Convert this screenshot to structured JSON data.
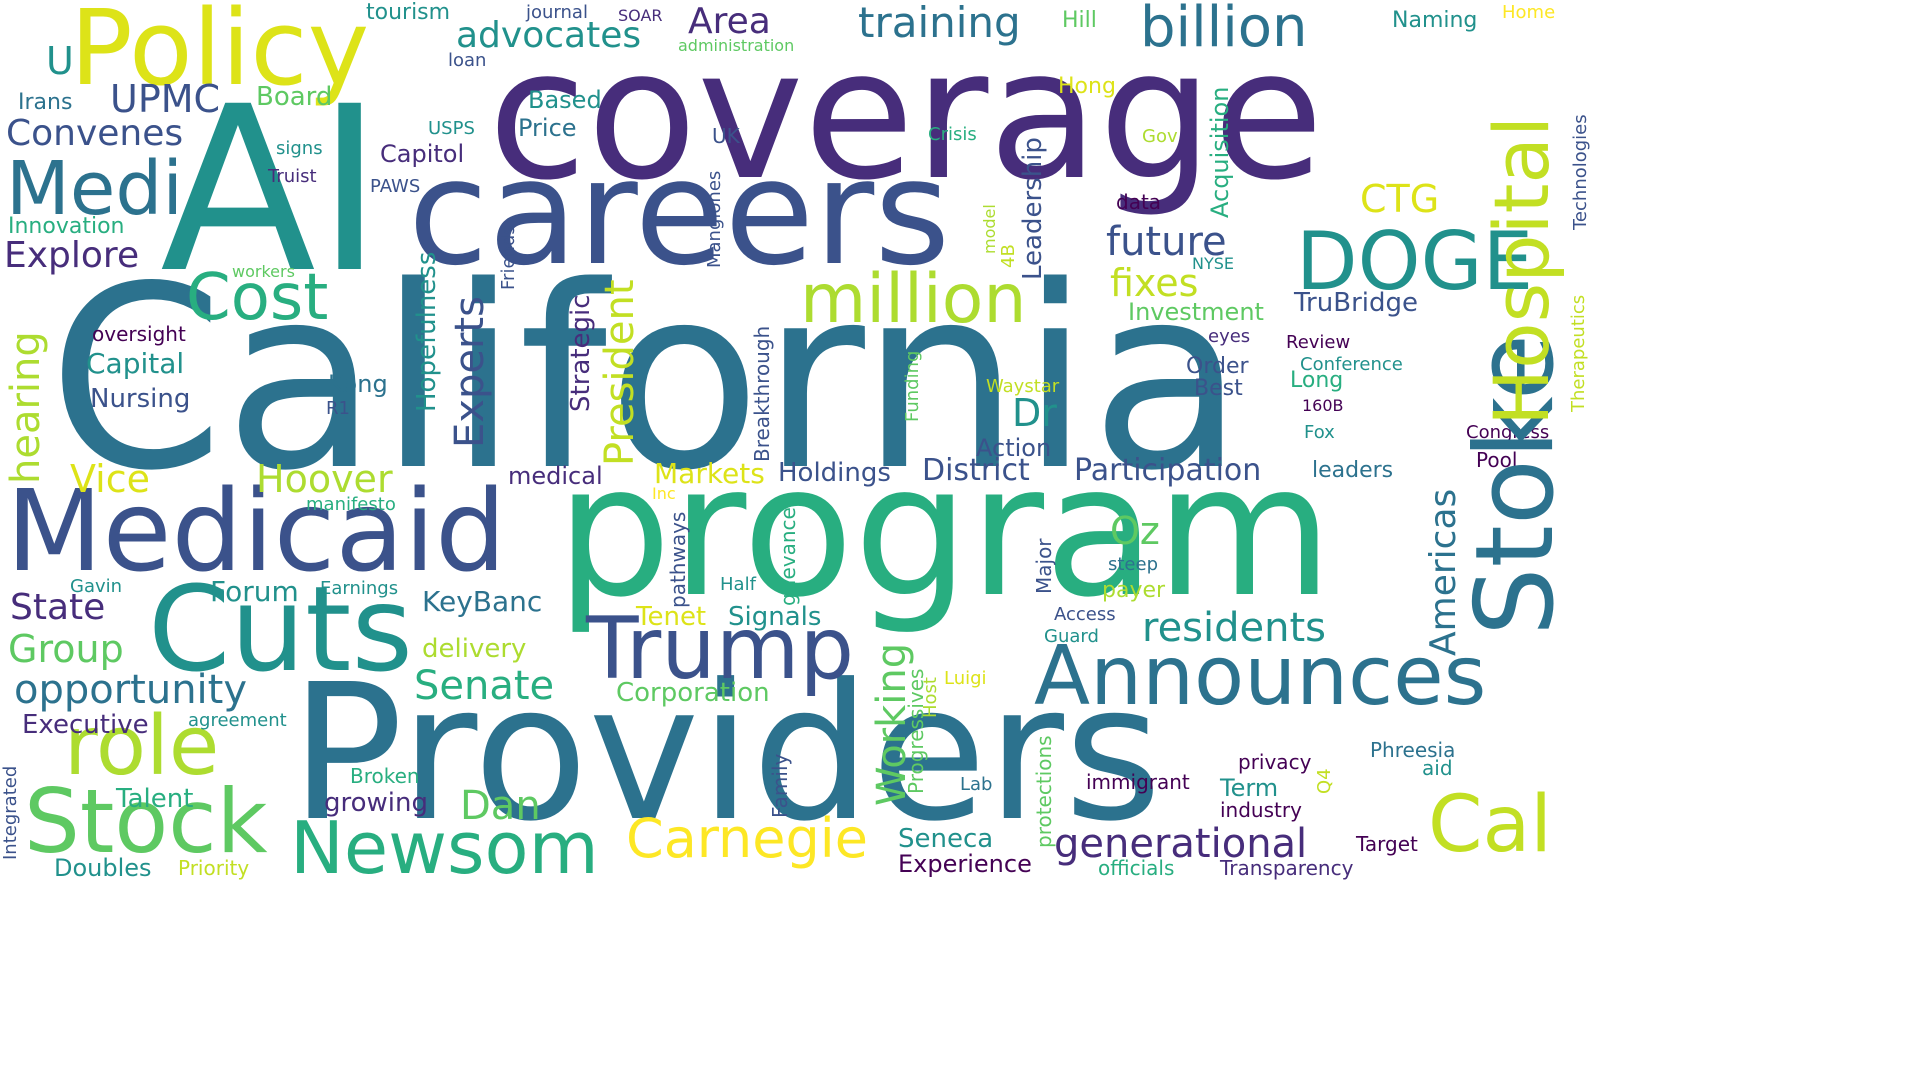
{
  "palette": {
    "c1": "#440154",
    "c2": "#472d7b",
    "c3": "#3b528b",
    "c4": "#2c728e",
    "c5": "#21918c",
    "c6": "#28ae80",
    "c7": "#5ec962",
    "c8": "#addc30",
    "c9": "#fde725"
  },
  "words": [
    {
      "text": "California",
      "color": "#2c728e"
    },
    {
      "text": "coverage",
      "color": "#472d7b"
    },
    {
      "text": "AI",
      "color": "#21918c"
    },
    {
      "text": "careers",
      "color": "#3b528b"
    },
    {
      "text": "program",
      "color": "#28ae80"
    },
    {
      "text": "Providers",
      "color": "#2c728e"
    },
    {
      "text": "Policy",
      "color": "#dde318"
    },
    {
      "text": "Medicaid",
      "color": "#3b528b"
    },
    {
      "text": "Cuts",
      "color": "#21918c"
    },
    {
      "text": "Stoke",
      "color": "#2c728e"
    },
    {
      "text": "Hospital",
      "color": "#c2df23"
    },
    {
      "text": "DOGE",
      "color": "#21918c"
    },
    {
      "text": "Trump",
      "color": "#3b528b"
    },
    {
      "text": "Announces",
      "color": "#2c728e"
    },
    {
      "text": "Stock",
      "color": "#5ec962"
    },
    {
      "text": "role",
      "color": "#addc30"
    },
    {
      "text": "Newsom",
      "color": "#28ae80"
    },
    {
      "text": "Cal",
      "color": "#c2df23"
    },
    {
      "text": "Carnegie",
      "color": "#fde725"
    },
    {
      "text": "million",
      "color": "#addc30"
    },
    {
      "text": "Medi",
      "color": "#2c728e"
    },
    {
      "text": "Cost",
      "color": "#28ae80"
    },
    {
      "text": "billion",
      "color": "#2c728e"
    },
    {
      "text": "training",
      "color": "#2c728e"
    },
    {
      "text": "advocates",
      "color": "#21918c"
    },
    {
      "text": "Area",
      "color": "#472d7b"
    },
    {
      "text": "future",
      "color": "#3b528b"
    },
    {
      "text": "fixes",
      "color": "#c2df23"
    },
    {
      "text": "generational",
      "color": "#472d7b"
    },
    {
      "text": "residents",
      "color": "#21918c"
    },
    {
      "text": "Senate",
      "color": "#28ae80"
    },
    {
      "text": "opportunity",
      "color": "#2c728e"
    },
    {
      "text": "Hoover",
      "color": "#addc30"
    },
    {
      "text": "Convenes",
      "color": "#3b528b"
    },
    {
      "text": "UPMC",
      "color": "#3b528b"
    },
    {
      "text": "Explore",
      "color": "#472d7b"
    },
    {
      "text": "Group",
      "color": "#5ec962"
    },
    {
      "text": "State",
      "color": "#472d7b"
    },
    {
      "text": "Forum",
      "color": "#21918c"
    },
    {
      "text": "Vice",
      "color": "#dde318"
    },
    {
      "text": "Dan",
      "color": "#5ec962"
    },
    {
      "text": "Dr",
      "color": "#21918c"
    },
    {
      "text": "Oz",
      "color": "#5ec962"
    },
    {
      "text": "Participation",
      "color": "#3b528b"
    },
    {
      "text": "District",
      "color": "#3b528b"
    },
    {
      "text": "Holdings",
      "color": "#3b528b"
    },
    {
      "text": "Markets",
      "color": "#dde318"
    },
    {
      "text": "KeyBanc",
      "color": "#2c728e"
    },
    {
      "text": "Signals",
      "color": "#21918c"
    },
    {
      "text": "Tenet",
      "color": "#dde318"
    },
    {
      "text": "Corporation",
      "color": "#5ec962"
    },
    {
      "text": "delivery",
      "color": "#addc30"
    },
    {
      "text": "Executive",
      "color": "#472d7b"
    },
    {
      "text": "Talent",
      "color": "#28ae80"
    },
    {
      "text": "growing",
      "color": "#472d7b"
    },
    {
      "text": "Broken",
      "color": "#28ae80"
    },
    {
      "text": "Doubles",
      "color": "#21918c"
    },
    {
      "text": "Priority",
      "color": "#c2df23"
    },
    {
      "text": "Seneca",
      "color": "#21918c"
    },
    {
      "text": "Experience",
      "color": "#440154"
    },
    {
      "text": "Transparency",
      "color": "#472d7b"
    },
    {
      "text": "officials",
      "color": "#28ae80"
    },
    {
      "text": "industry",
      "color": "#440154"
    },
    {
      "text": "Term",
      "color": "#21918c"
    },
    {
      "text": "immigrant",
      "color": "#440154"
    },
    {
      "text": "privacy",
      "color": "#440154"
    },
    {
      "text": "Phreesia",
      "color": "#2c728e"
    },
    {
      "text": "aid",
      "color": "#21918c"
    },
    {
      "text": "Target",
      "color": "#440154"
    },
    {
      "text": "Capital",
      "color": "#21918c"
    },
    {
      "text": "Nursing",
      "color": "#3b528b"
    },
    {
      "text": "oversight",
      "color": "#440154"
    },
    {
      "text": "Kong",
      "color": "#2c728e"
    },
    {
      "text": "R1",
      "color": "#3b528b"
    },
    {
      "text": "Capitol",
      "color": "#472d7b"
    },
    {
      "text": "Price",
      "color": "#2c728e"
    },
    {
      "text": "Based",
      "color": "#21918c"
    },
    {
      "text": "Board",
      "color": "#5ec962"
    },
    {
      "text": "Irans",
      "color": "#2c728e"
    },
    {
      "text": "U",
      "color": "#21918c"
    },
    {
      "text": "signs",
      "color": "#21918c"
    },
    {
      "text": "Truist",
      "color": "#472d7b"
    },
    {
      "text": "Innovation",
      "color": "#28ae80"
    },
    {
      "text": "workers",
      "color": "#5ec962"
    },
    {
      "text": "USPS",
      "color": "#21918c"
    },
    {
      "text": "PAWS",
      "color": "#3b528b"
    },
    {
      "text": "UK",
      "color": "#3b528b"
    },
    {
      "text": "Crisis",
      "color": "#28ae80"
    },
    {
      "text": "Gov",
      "color": "#addc30"
    },
    {
      "text": "Hong",
      "color": "#dde318"
    },
    {
      "text": "Hill",
      "color": "#5ec962"
    },
    {
      "text": "Naming",
      "color": "#21918c"
    },
    {
      "text": "Home",
      "color": "#fde725"
    },
    {
      "text": "tourism",
      "color": "#21918c"
    },
    {
      "text": "journal",
      "color": "#3b528b"
    },
    {
      "text": "SOAR",
      "color": "#472d7b"
    },
    {
      "text": "administration",
      "color": "#5ec962"
    },
    {
      "text": "loan",
      "color": "#3b528b"
    },
    {
      "text": "data",
      "color": "#440154"
    },
    {
      "text": "CTG",
      "color": "#dde318"
    },
    {
      "text": "NYSE",
      "color": "#21918c"
    },
    {
      "text": "TruBridge",
      "color": "#3b528b"
    },
    {
      "text": "Investment",
      "color": "#5ec962"
    },
    {
      "text": "eyes",
      "color": "#472d7b"
    },
    {
      "text": "Review",
      "color": "#440154"
    },
    {
      "text": "Conference",
      "color": "#21918c"
    },
    {
      "text": "Order",
      "color": "#3b528b"
    },
    {
      "text": "Best",
      "color": "#3b528b"
    },
    {
      "text": "Long",
      "color": "#28ae80"
    },
    {
      "text": "160B",
      "color": "#440154"
    },
    {
      "text": "Waystar",
      "color": "#c2df23"
    },
    {
      "text": "Fox",
      "color": "#21918c"
    },
    {
      "text": "Congress",
      "color": "#440154"
    },
    {
      "text": "Pool",
      "color": "#440154"
    },
    {
      "text": "leaders",
      "color": "#2c728e"
    },
    {
      "text": "Action",
      "color": "#3b528b"
    },
    {
      "text": "medical",
      "color": "#472d7b"
    },
    {
      "text": "Inc",
      "color": "#fde725"
    },
    {
      "text": "manifesto",
      "color": "#28ae80"
    },
    {
      "text": "Gavin",
      "color": "#21918c"
    },
    {
      "text": "Earnings",
      "color": "#21918c"
    },
    {
      "text": "agreement",
      "color": "#21918c"
    },
    {
      "text": "Half",
      "color": "#21918c"
    },
    {
      "text": "steep",
      "color": "#2c728e"
    },
    {
      "text": "payer",
      "color": "#addc30"
    },
    {
      "text": "Access",
      "color": "#3b528b"
    },
    {
      "text": "Guard",
      "color": "#21918c"
    },
    {
      "text": "Luigi",
      "color": "#dde318"
    },
    {
      "text": "Lab",
      "color": "#2c728e"
    },
    {
      "text": "hearing",
      "color": "#addc30"
    },
    {
      "text": "Integrated",
      "color": "#3b528b"
    },
    {
      "text": "Experts",
      "color": "#3b528b"
    },
    {
      "text": "Hopefulness",
      "color": "#21918c"
    },
    {
      "text": "President",
      "color": "#c2df23"
    },
    {
      "text": "Strategic",
      "color": "#472d7b"
    },
    {
      "text": "Friends",
      "color": "#3b528b"
    },
    {
      "text": "Mangiones",
      "color": "#3b528b"
    },
    {
      "text": "Breakthrough",
      "color": "#3b528b"
    },
    {
      "text": "Acquisition",
      "color": "#28ae80"
    },
    {
      "text": "Leadership",
      "color": "#3b528b"
    },
    {
      "text": "4B",
      "color": "#c2df23"
    },
    {
      "text": "model",
      "color": "#addc30"
    },
    {
      "text": "Funding",
      "color": "#5ec962"
    },
    {
      "text": "Working",
      "color": "#5ec962"
    },
    {
      "text": "Progressives",
      "color": "#5ec962"
    },
    {
      "text": "Host",
      "color": "#addc30"
    },
    {
      "text": "pathways",
      "color": "#3b528b"
    },
    {
      "text": "grievances",
      "color": "#28ae80"
    },
    {
      "text": "Major",
      "color": "#3b528b"
    },
    {
      "text": "Family",
      "color": "#3b528b"
    },
    {
      "text": "protections",
      "color": "#5ec962"
    },
    {
      "text": "Q4",
      "color": "#c2df23"
    },
    {
      "text": "Americas",
      "color": "#2c728e"
    },
    {
      "text": "Therapeutics",
      "color": "#c2df23"
    },
    {
      "text": "Technologies",
      "color": "#3b528b"
    }
  ]
}
